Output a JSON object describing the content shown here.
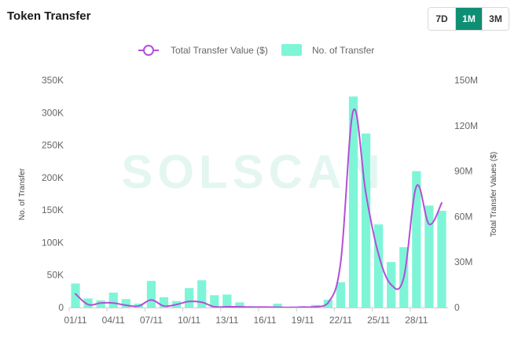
{
  "header": {
    "title": "Token Transfer",
    "ranges": [
      "7D",
      "1M",
      "3M"
    ],
    "active_range": "1M"
  },
  "watermark": "SOLSCAN",
  "colors": {
    "bar": "#7ff5d8",
    "line": "#b44fd6",
    "accent": "#0e8f74"
  },
  "chart_data": {
    "type": "bar+line",
    "categories": [
      "01/11",
      "02/11",
      "03/11",
      "04/11",
      "05/11",
      "06/11",
      "07/11",
      "08/11",
      "09/11",
      "10/11",
      "11/11",
      "12/11",
      "13/11",
      "14/11",
      "15/11",
      "16/11",
      "17/11",
      "18/11",
      "19/11",
      "20/11",
      "21/11",
      "22/11",
      "23/11",
      "24/11",
      "25/11",
      "26/11",
      "27/11",
      "28/11",
      "29/11",
      "30/11"
    ],
    "x_tick_labels": [
      "01/11",
      "04/11",
      "07/11",
      "10/11",
      "13/11",
      "16/11",
      "19/11",
      "22/11",
      "25/11",
      "28/11"
    ],
    "legend": [
      "Total Transfer Value ($)",
      "No. of Transfer"
    ],
    "legend_position": "top-center",
    "series": [
      {
        "name": "No. of Transfer",
        "type": "bar",
        "axis": "left",
        "values": [
          37000,
          14000,
          11000,
          23000,
          13000,
          6000,
          41000,
          16000,
          10000,
          30000,
          42000,
          19000,
          20000,
          8000,
          2000,
          1000,
          6000,
          1000,
          2000,
          4000,
          12000,
          39000,
          325000,
          268000,
          128000,
          70000,
          93000,
          210000,
          157000,
          149000
        ]
      },
      {
        "name": "Total Transfer Value ($)",
        "type": "line",
        "axis": "right",
        "values": [
          9000000,
          2000000,
          3000000,
          3000000,
          1500000,
          1000000,
          5000000,
          1000000,
          2000000,
          4000000,
          3500000,
          500000,
          500000,
          500000,
          300000,
          300000,
          200000,
          100000,
          300000,
          500000,
          3000000,
          30000000,
          130000000,
          75000000,
          35000000,
          15000000,
          20000000,
          80000000,
          55000000,
          69000000
        ]
      }
    ],
    "y_left": {
      "label": "No. of Transfer",
      "range": [
        0,
        350000
      ],
      "ticks": [
        "0",
        "50K",
        "100K",
        "150K",
        "200K",
        "250K",
        "300K",
        "350K"
      ]
    },
    "y_right": {
      "label": "Total Transfer Values ($)",
      "range": [
        0,
        150000000
      ],
      "ticks": [
        "0",
        "30M",
        "60M",
        "90M",
        "120M",
        "150M"
      ]
    },
    "grid": false
  }
}
